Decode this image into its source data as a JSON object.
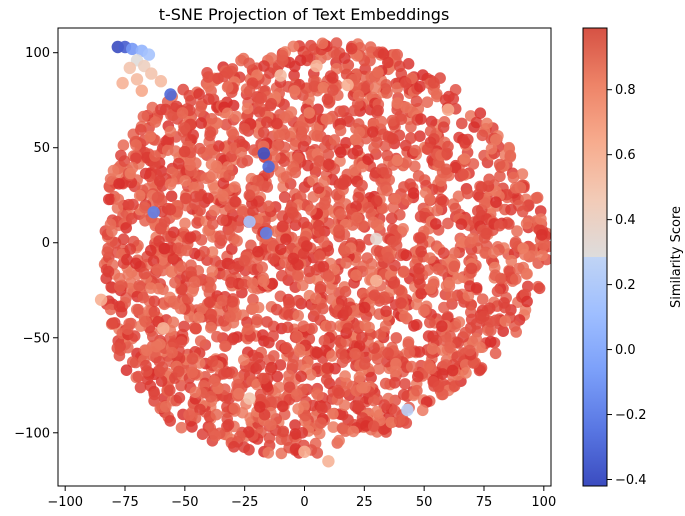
{
  "chart_data": {
    "type": "scatter",
    "title": "t-SNE Projection of Text Embeddings",
    "xlabel": "",
    "ylabel": "",
    "xlim": [
      -103,
      103
    ],
    "ylim": [
      -128,
      113
    ],
    "xticks": [
      -100,
      -75,
      -50,
      -25,
      0,
      25,
      50,
      75,
      100
    ],
    "yticks": [
      -100,
      -50,
      0,
      50,
      100
    ],
    "grid": false,
    "colorbar": {
      "label": "Similarity Score",
      "range": [
        -0.42,
        0.99
      ],
      "ticks": [
        -0.4,
        -0.2,
        0.0,
        0.2,
        0.4,
        0.6,
        0.8
      ],
      "colormap": "coolwarm"
    },
    "point_cloud": {
      "count": 2600,
      "center": [
        3,
        -3
      ],
      "shape": "roughly circular blob spanning x -92..95 and y -118..103",
      "dominant_value": 0.92
    },
    "highlight_points": [
      {
        "x": -78,
        "y": 103,
        "v": -0.42
      },
      {
        "x": -75,
        "y": 103,
        "v": -0.35
      },
      {
        "x": -72,
        "y": 102,
        "v": -0.1
      },
      {
        "x": -68,
        "y": 101,
        "v": 0.05
      },
      {
        "x": -65,
        "y": 99,
        "v": 0.15
      },
      {
        "x": -70,
        "y": 96,
        "v": 0.3
      },
      {
        "x": -67,
        "y": 93,
        "v": 0.42
      },
      {
        "x": -73,
        "y": 92,
        "v": 0.5
      },
      {
        "x": -64,
        "y": 89,
        "v": 0.5
      },
      {
        "x": -70,
        "y": 86,
        "v": 0.55
      },
      {
        "x": -76,
        "y": 84,
        "v": 0.6
      },
      {
        "x": -60,
        "y": 85,
        "v": 0.55
      },
      {
        "x": -68,
        "y": 80,
        "v": 0.65
      },
      {
        "x": -56,
        "y": 78,
        "v": -0.3
      },
      {
        "x": -17,
        "y": 47,
        "v": -0.4
      },
      {
        "x": -15,
        "y": 40,
        "v": -0.3
      },
      {
        "x": -63,
        "y": 16,
        "v": -0.2
      },
      {
        "x": -16,
        "y": 5,
        "v": -0.2
      },
      {
        "x": -23,
        "y": 11,
        "v": 0.15
      },
      {
        "x": 30,
        "y": 2,
        "v": 0.35
      },
      {
        "x": 43,
        "y": -88,
        "v": 0.25
      },
      {
        "x": -23,
        "y": -82,
        "v": 0.5
      },
      {
        "x": -59,
        "y": -45,
        "v": 0.6
      },
      {
        "x": 30,
        "y": -20,
        "v": 0.6
      },
      {
        "x": -10,
        "y": 88,
        "v": 0.55
      },
      {
        "x": 5,
        "y": 93,
        "v": 0.6
      },
      {
        "x": 18,
        "y": 83,
        "v": 0.62
      },
      {
        "x": 60,
        "y": 70,
        "v": 0.65
      },
      {
        "x": -85,
        "y": -30,
        "v": 0.62
      },
      {
        "x": 0,
        "y": -110,
        "v": 0.62
      },
      {
        "x": 10,
        "y": -115,
        "v": 0.6
      }
    ]
  }
}
